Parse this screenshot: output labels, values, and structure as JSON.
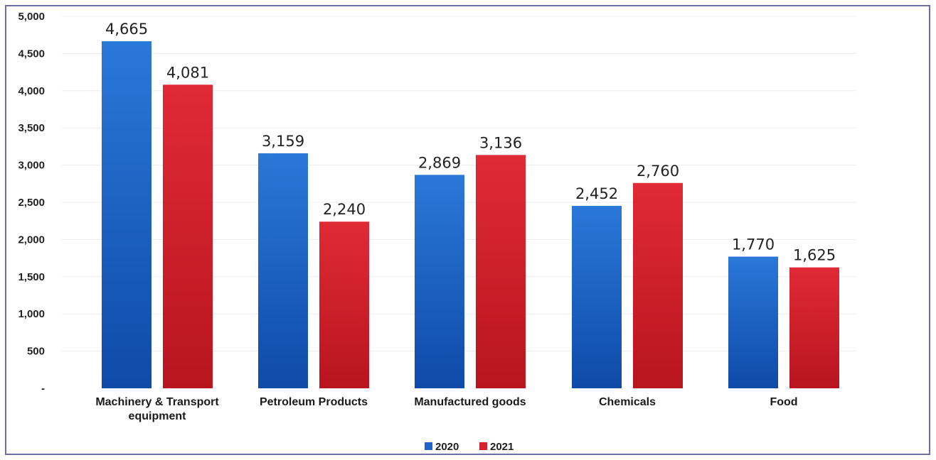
{
  "chart_data": {
    "type": "bar",
    "categories": [
      [
        "Machinery & Transport",
        "equipment"
      ],
      [
        "Petroleum Products"
      ],
      [
        "Manufactured goods"
      ],
      [
        "Chemicals"
      ],
      [
        "Food"
      ]
    ],
    "series": [
      {
        "name": "2020",
        "color": "#1f63c4",
        "values": [
          4665,
          3159,
          2869,
          2452,
          1770
        ]
      },
      {
        "name": "2021",
        "color": "#d3212f",
        "values": [
          4081,
          2240,
          3136,
          2760,
          1625
        ]
      }
    ],
    "data_labels": [
      [
        "4,665",
        "3,159",
        "2,869",
        "2,452",
        "1,770"
      ],
      [
        "4,081",
        "2,240",
        "3,136",
        "2,760",
        "1,625"
      ]
    ],
    "yticks": [
      {
        "value": 0,
        "label": "-"
      },
      {
        "value": 500,
        "label": "500"
      },
      {
        "value": 1000,
        "label": "1,000"
      },
      {
        "value": 1500,
        "label": "1,500"
      },
      {
        "value": 2000,
        "label": "2,000"
      },
      {
        "value": 2500,
        "label": "2,500"
      },
      {
        "value": 3000,
        "label": "3,000"
      },
      {
        "value": 3500,
        "label": "3,500"
      },
      {
        "value": 4000,
        "label": "4,000"
      },
      {
        "value": 4500,
        "label": "4,500"
      },
      {
        "value": 5000,
        "label": "5,000"
      }
    ],
    "ylim": [
      0,
      5000
    ],
    "grid": true,
    "legend_position": "bottom"
  }
}
